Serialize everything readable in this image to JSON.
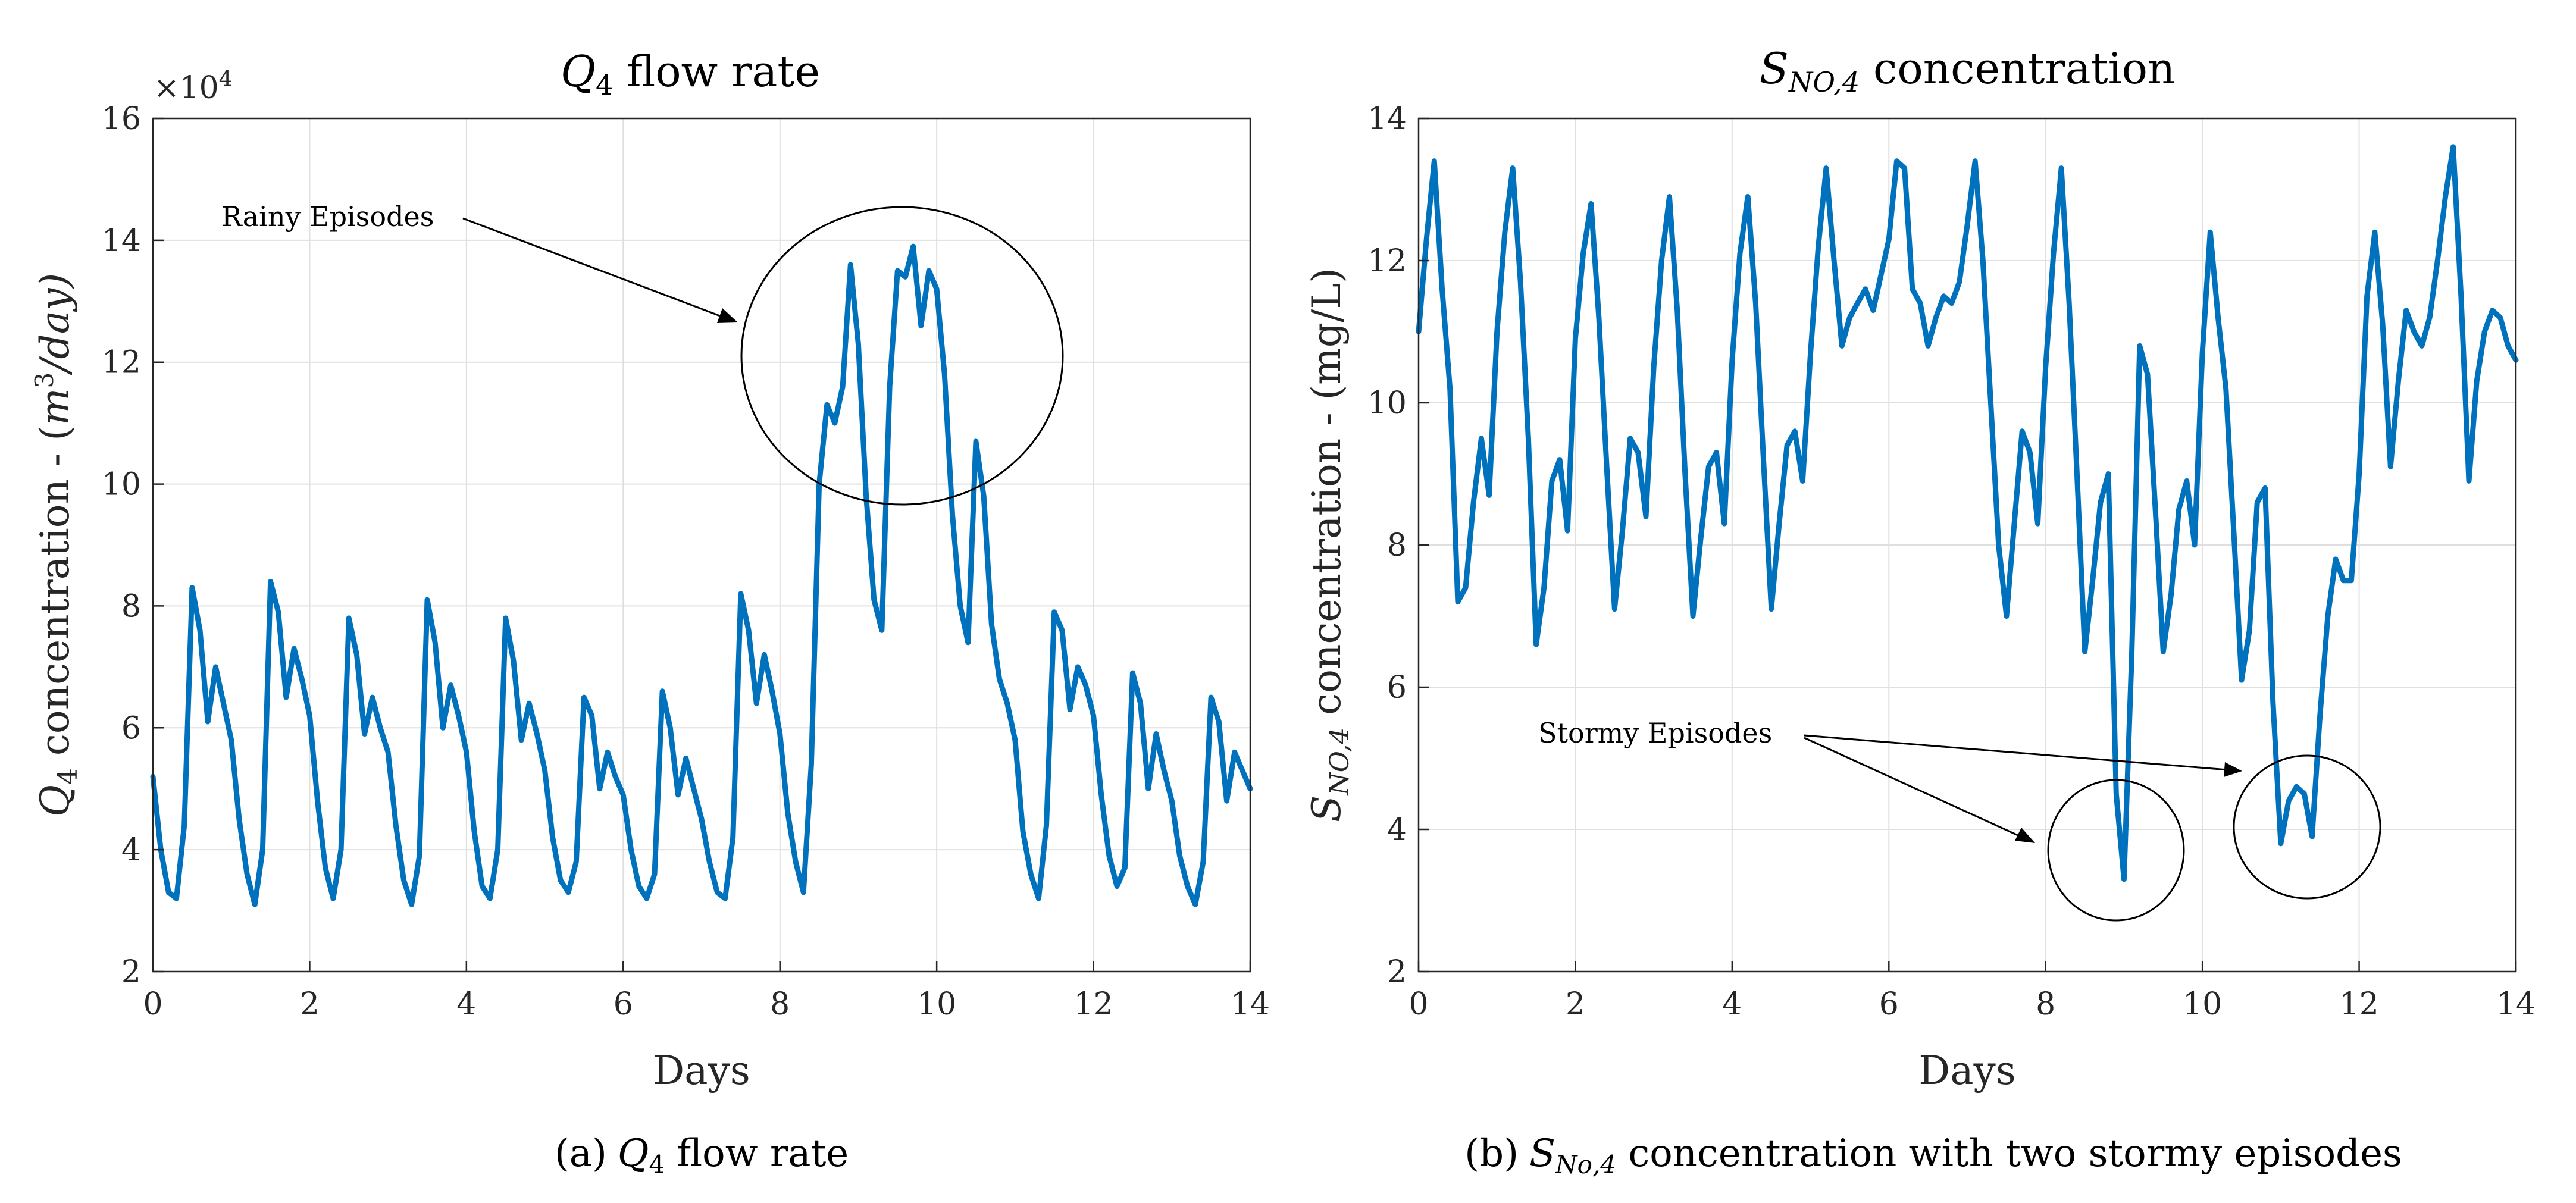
{
  "colors": {
    "series": "#0072BD",
    "axis": "#262626",
    "grid": "#dfdfdf"
  },
  "chart_data": [
    {
      "type": "line",
      "title_var": "Q",
      "title_sub": "4",
      "title_rest": " flow rate",
      "xlabel": "Days",
      "ylabel_var": "Q",
      "ylabel_sub": "4",
      "ylabel_mid": " concentration - (",
      "ylabel_unit": "m",
      "ylabel_sup": "3",
      "ylabel_end": "/day)",
      "multiplier_base": "×10",
      "multiplier_exp": "4",
      "xlim": [
        0,
        14
      ],
      "ylim": [
        2,
        16
      ],
      "xticks": [
        "0",
        "2",
        "4",
        "6",
        "8",
        "10",
        "12",
        "14"
      ],
      "yticks": [
        "2",
        "4",
        "6",
        "8",
        "10",
        "12",
        "14",
        "16"
      ],
      "series": [
        {
          "name": "Q4",
          "x": [
            0.0,
            0.1,
            0.2,
            0.3,
            0.4,
            0.5,
            0.6,
            0.7,
            0.8,
            0.9,
            1.0,
            1.1,
            1.2,
            1.3,
            1.4,
            1.5,
            1.6,
            1.7,
            1.8,
            1.9,
            2.0,
            2.1,
            2.2,
            2.3,
            2.4,
            2.5,
            2.6,
            2.7,
            2.8,
            2.9,
            3.0,
            3.1,
            3.2,
            3.3,
            3.4,
            3.5,
            3.6,
            3.7,
            3.8,
            3.9,
            4.0,
            4.1,
            4.2,
            4.3,
            4.4,
            4.5,
            4.6,
            4.7,
            4.8,
            4.9,
            5.0,
            5.1,
            5.2,
            5.3,
            5.4,
            5.5,
            5.6,
            5.7,
            5.8,
            5.9,
            6.0,
            6.1,
            6.2,
            6.3,
            6.4,
            6.5,
            6.6,
            6.7,
            6.8,
            6.9,
            7.0,
            7.1,
            7.2,
            7.3,
            7.4,
            7.5,
            7.6,
            7.7,
            7.8,
            7.9,
            8.0,
            8.1,
            8.2,
            8.3,
            8.4,
            8.5,
            8.6,
            8.7,
            8.8,
            8.9,
            9.0,
            9.1,
            9.2,
            9.3,
            9.4,
            9.5,
            9.6,
            9.7,
            9.8,
            9.9,
            10.0,
            10.1,
            10.2,
            10.3,
            10.4,
            10.5,
            10.6,
            10.7,
            10.8,
            10.9,
            11.0,
            11.1,
            11.2,
            11.3,
            11.4,
            11.5,
            11.6,
            11.7,
            11.8,
            11.9,
            12.0,
            12.1,
            12.2,
            12.3,
            12.4,
            12.5,
            12.6,
            12.7,
            12.8,
            12.9,
            13.0,
            13.1,
            13.2,
            13.3,
            13.4,
            13.5,
            13.6,
            13.7,
            13.8,
            13.9,
            14.0
          ],
          "values": [
            5.2,
            4.0,
            3.3,
            3.2,
            4.4,
            8.3,
            7.6,
            6.1,
            7.0,
            6.4,
            5.8,
            4.5,
            3.6,
            3.1,
            4.0,
            8.4,
            7.9,
            6.5,
            7.3,
            6.8,
            6.2,
            4.8,
            3.7,
            3.2,
            4.0,
            7.8,
            7.2,
            5.9,
            6.5,
            6.0,
            5.6,
            4.4,
            3.5,
            3.1,
            3.9,
            8.1,
            7.4,
            6.0,
            6.7,
            6.2,
            5.6,
            4.3,
            3.4,
            3.2,
            4.0,
            7.8,
            7.1,
            5.8,
            6.4,
            5.9,
            5.3,
            4.2,
            3.5,
            3.3,
            3.8,
            6.5,
            6.2,
            5.0,
            5.6,
            5.2,
            4.9,
            4.0,
            3.4,
            3.2,
            3.6,
            6.6,
            6.0,
            4.9,
            5.5,
            5.0,
            4.5,
            3.8,
            3.3,
            3.2,
            4.2,
            8.2,
            7.6,
            6.4,
            7.2,
            6.6,
            5.9,
            4.6,
            3.8,
            3.3,
            5.4,
            10.0,
            11.3,
            11.0,
            11.6,
            13.6,
            12.3,
            9.8,
            8.1,
            7.6,
            11.6,
            13.5,
            13.4,
            13.9,
            12.6,
            13.5,
            13.2,
            11.8,
            9.5,
            8.0,
            7.4,
            10.7,
            9.8,
            7.7,
            6.8,
            6.4,
            5.8,
            4.3,
            3.6,
            3.2,
            4.4,
            7.9,
            7.6,
            6.3,
            7.0,
            6.7,
            6.2,
            4.9,
            3.9,
            3.4,
            3.7,
            6.9,
            6.4,
            5.0,
            5.9,
            5.3,
            4.8,
            3.9,
            3.4,
            3.1,
            3.8,
            6.5,
            6.1,
            4.8,
            5.6,
            5.3,
            5.0
          ]
        }
      ],
      "annotations": [
        {
          "text": "Rainy Episodes"
        }
      ]
    },
    {
      "type": "line",
      "title_var": "S",
      "title_sub": "NO,4",
      "title_rest": " concentration",
      "xlabel": "Days",
      "ylabel_var": "S",
      "ylabel_sub": "NO,4",
      "ylabel_mid": " concentration - (mg/L)",
      "xlim": [
        0,
        14
      ],
      "ylim": [
        2,
        14
      ],
      "xticks": [
        "0",
        "2",
        "4",
        "6",
        "8",
        "10",
        "12",
        "14"
      ],
      "yticks": [
        "2",
        "4",
        "6",
        "8",
        "10",
        "12",
        "14"
      ],
      "series": [
        {
          "name": "SNO4",
          "x": [
            0.0,
            0.1,
            0.2,
            0.3,
            0.4,
            0.5,
            0.6,
            0.7,
            0.8,
            0.9,
            1.0,
            1.1,
            1.2,
            1.3,
            1.4,
            1.5,
            1.6,
            1.7,
            1.8,
            1.9,
            2.0,
            2.1,
            2.2,
            2.3,
            2.4,
            2.5,
            2.6,
            2.7,
            2.8,
            2.9,
            3.0,
            3.1,
            3.2,
            3.3,
            3.4,
            3.5,
            3.6,
            3.7,
            3.8,
            3.9,
            4.0,
            4.1,
            4.2,
            4.3,
            4.4,
            4.5,
            4.6,
            4.7,
            4.8,
            4.9,
            5.0,
            5.1,
            5.2,
            5.3,
            5.4,
            5.5,
            5.6,
            5.7,
            5.8,
            5.9,
            6.0,
            6.1,
            6.2,
            6.3,
            6.4,
            6.5,
            6.6,
            6.7,
            6.8,
            6.9,
            7.0,
            7.1,
            7.2,
            7.3,
            7.4,
            7.5,
            7.6,
            7.7,
            7.8,
            7.9,
            8.0,
            8.1,
            8.2,
            8.3,
            8.4,
            8.5,
            8.6,
            8.7,
            8.8,
            8.9,
            9.0,
            9.1,
            9.2,
            9.3,
            9.4,
            9.5,
            9.6,
            9.7,
            9.8,
            9.9,
            10.0,
            10.1,
            10.2,
            10.3,
            10.4,
            10.5,
            10.6,
            10.7,
            10.8,
            10.9,
            11.0,
            11.1,
            11.2,
            11.3,
            11.4,
            11.5,
            11.6,
            11.7,
            11.8,
            11.9,
            12.0,
            12.1,
            12.2,
            12.3,
            12.4,
            12.5,
            12.6,
            12.7,
            12.8,
            12.9,
            13.0,
            13.1,
            13.2,
            13.3,
            13.4,
            13.5,
            13.6,
            13.7,
            13.8,
            13.9,
            14.0
          ],
          "values": [
            11.0,
            12.3,
            13.4,
            11.6,
            10.2,
            7.2,
            7.4,
            8.6,
            9.5,
            8.7,
            11.0,
            12.4,
            13.3,
            11.7,
            9.5,
            6.6,
            7.4,
            8.9,
            9.2,
            8.2,
            10.9,
            12.1,
            12.8,
            11.2,
            9.1,
            7.1,
            8.2,
            9.5,
            9.3,
            8.4,
            10.5,
            12.0,
            12.9,
            11.3,
            9.0,
            7.0,
            8.1,
            9.1,
            9.3,
            8.3,
            10.6,
            12.1,
            12.9,
            11.4,
            9.2,
            7.1,
            8.3,
            9.4,
            9.6,
            8.9,
            10.7,
            12.2,
            13.3,
            12.0,
            10.8,
            11.2,
            11.4,
            11.6,
            11.3,
            11.8,
            12.3,
            13.4,
            13.3,
            11.6,
            11.4,
            10.8,
            11.2,
            11.5,
            11.4,
            11.7,
            12.5,
            13.4,
            12.0,
            10.0,
            8.0,
            7.0,
            8.3,
            9.6,
            9.3,
            8.3,
            10.5,
            12.1,
            13.3,
            11.4,
            9.0,
            6.5,
            7.5,
            8.6,
            9.0,
            4.5,
            3.3,
            6.5,
            10.8,
            10.4,
            8.5,
            6.5,
            7.3,
            8.5,
            8.9,
            8.0,
            10.7,
            12.4,
            11.2,
            10.2,
            8.2,
            6.1,
            6.8,
            8.6,
            8.8,
            5.8,
            3.8,
            4.4,
            4.6,
            4.5,
            3.9,
            5.6,
            7.0,
            7.8,
            7.5,
            7.5,
            9.0,
            11.5,
            12.4,
            11.1,
            9.1,
            10.3,
            11.3,
            11.0,
            10.8,
            11.2,
            12.0,
            12.9,
            13.6,
            11.5,
            8.9,
            10.3,
            11.0,
            11.3,
            11.2,
            10.8,
            10.6
          ]
        }
      ],
      "annotations": [
        {
          "text": "Stormy Episodes"
        }
      ]
    }
  ],
  "captions": [
    {
      "label": "(a)",
      "var": "Q",
      "sub": "4",
      "rest": " flow rate"
    },
    {
      "label": "(b)",
      "var": "S",
      "sub": "No,4",
      "rest": " concentration with two stormy episodes"
    }
  ]
}
